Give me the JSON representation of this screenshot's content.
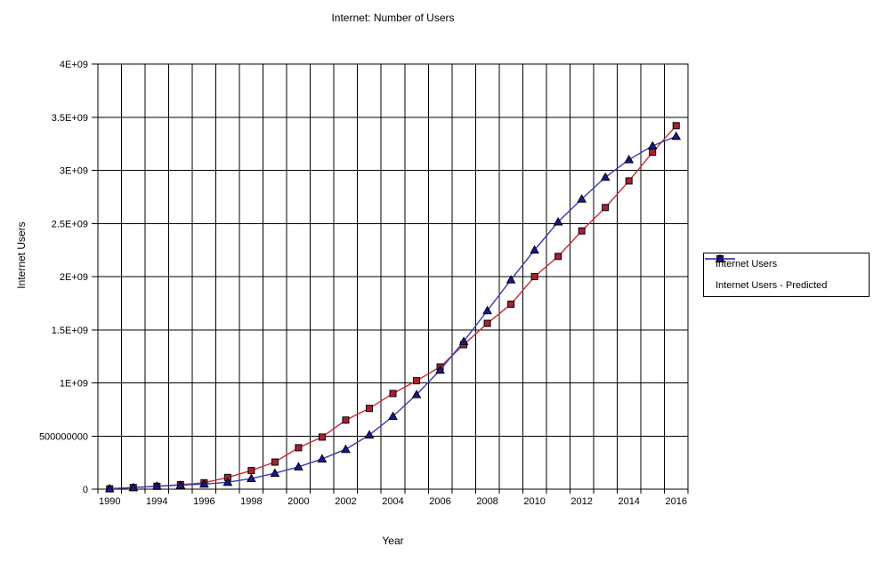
{
  "chart_data": {
    "type": "line",
    "title": "Internet: Number of Users",
    "xlabel": "Year",
    "ylabel": "Internet Users",
    "x": [
      1990,
      1992,
      1994,
      1995,
      1996,
      1997,
      1998,
      1999,
      2000,
      2001,
      2002,
      2003,
      2004,
      2005,
      2006,
      2007,
      2008,
      2009,
      2010,
      2011,
      2012,
      2013,
      2014,
      2015,
      2016
    ],
    "series": [
      {
        "name": "Internet Users",
        "marker": "square",
        "line_color": "#cc2936",
        "marker_fill": "#a8222e",
        "marker_stroke": "#000000",
        "values": [
          3000000,
          15000000,
          27000000,
          42000000,
          60000000,
          110000000,
          175000000,
          255000000,
          390000000,
          490000000,
          650000000,
          760000000,
          900000000,
          1020000000,
          1150000000,
          1360000000,
          1560000000,
          1740000000,
          2000000000,
          2190000000,
          2430000000,
          2650000000,
          2900000000,
          3170000000,
          3420000000
        ]
      },
      {
        "name": "Internet Users - Predicted",
        "marker": "triangle",
        "line_color": "#3a3ab0",
        "marker_fill": "#17179a",
        "marker_stroke": "#000000",
        "values": [
          5000000,
          15000000,
          28000000,
          38000000,
          48000000,
          65000000,
          100000000,
          150000000,
          210000000,
          285000000,
          375000000,
          510000000,
          685000000,
          890000000,
          1120000000,
          1390000000,
          1680000000,
          1970000000,
          2250000000,
          2515000000,
          2730000000,
          2935000000,
          3100000000,
          3230000000,
          3320000000
        ]
      }
    ],
    "ylim": [
      0,
      4000000000
    ],
    "y_ticks": [
      0,
      500000000,
      1000000000,
      1500000000,
      2000000000,
      2500000000,
      3000000000,
      3500000000,
      4000000000
    ],
    "y_tick_labels": [
      "0",
      "500000000",
      "1E+09",
      "1.5E+09",
      "2E+09",
      "2.5E+09",
      "3E+09",
      "3.5E+09",
      "4E+09"
    ],
    "x_label_indices": [
      0,
      2,
      4,
      6,
      8,
      10,
      12,
      14,
      16,
      18,
      20,
      22,
      24
    ],
    "x_tick_labels": [
      "1990",
      "1994",
      "1996",
      "1998",
      "2000",
      "2002",
      "2004",
      "2006",
      "2008",
      "2010",
      "2012",
      "2014",
      "2016"
    ],
    "grid": true,
    "legend_position": "right",
    "gridline_color": "#000000",
    "background_color": "#ffffff"
  }
}
